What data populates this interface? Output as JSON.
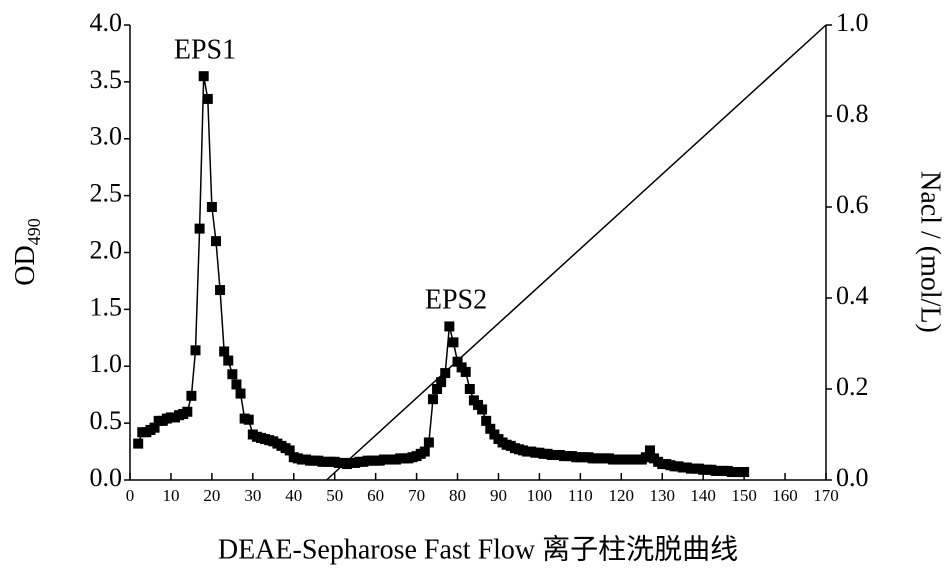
{
  "chart_data": {
    "type": "line",
    "xlabel": "DEAE-Sepharose Fast Flow 离子柱洗脱曲线",
    "ylabel": "OD",
    "ylabel_sub": "490",
    "y2label": "Nacl / (mol/L)",
    "annotations": [
      "EPS1",
      "EPS2"
    ],
    "xlim": [
      0,
      170
    ],
    "xticks": [
      0,
      10,
      20,
      30,
      40,
      50,
      60,
      70,
      80,
      90,
      100,
      110,
      120,
      130,
      140,
      150,
      160,
      170
    ],
    "ylim": [
      0,
      4
    ],
    "yticks": [
      {
        "value": 0,
        "label": "0.0"
      },
      {
        "value": 0.5,
        "label": "0.5"
      },
      {
        "value": 1,
        "label": "1.0"
      },
      {
        "value": 1.5,
        "label": "1.5"
      },
      {
        "value": 2,
        "label": "2.0"
      },
      {
        "value": 2.5,
        "label": "2.5"
      },
      {
        "value": 3,
        "label": "3.0"
      },
      {
        "value": 3.5,
        "label": "3.5"
      },
      {
        "value": 4,
        "label": "4.0"
      }
    ],
    "y2lim": [
      0,
      1
    ],
    "y2ticks": [
      {
        "value": 0,
        "label": "0.0"
      },
      {
        "value": 0.2,
        "label": "0.2"
      },
      {
        "value": 0.4,
        "label": "0.4"
      },
      {
        "value": 0.6,
        "label": "0.6"
      },
      {
        "value": 0.8,
        "label": "0.8"
      },
      {
        "value": 1,
        "label": "1.0"
      }
    ],
    "series": [
      {
        "color": "#000000",
        "marker": "square",
        "x": [
          2,
          3,
          4,
          5,
          6,
          7,
          8,
          9,
          10,
          11,
          12,
          13,
          14,
          15,
          16,
          17,
          18,
          19,
          20,
          21,
          22,
          23,
          24,
          25,
          26,
          27,
          28,
          29,
          30,
          31,
          32,
          33,
          34,
          35,
          36,
          37,
          38,
          39,
          40,
          41,
          42,
          43,
          44,
          45,
          46,
          47,
          48,
          49,
          50,
          51,
          52,
          53,
          54,
          55,
          56,
          57,
          58,
          59,
          60,
          61,
          62,
          63,
          64,
          65,
          66,
          67,
          68,
          69,
          70,
          71,
          72,
          73,
          74,
          75,
          76,
          77,
          78,
          79,
          80,
          81,
          82,
          83,
          84,
          85,
          86,
          87,
          88,
          89,
          90,
          91,
          92,
          93,
          94,
          95,
          96,
          97,
          98,
          99,
          100,
          101,
          102,
          103,
          104,
          105,
          106,
          107,
          108,
          109,
          110,
          111,
          112,
          113,
          114,
          115,
          116,
          117,
          118,
          119,
          120,
          121,
          122,
          123,
          124,
          125,
          126,
          127,
          128,
          129,
          130,
          131,
          132,
          133,
          134,
          135,
          136,
          137,
          138,
          139,
          140,
          141,
          142,
          143,
          144,
          145,
          146,
          147,
          148,
          149,
          150
        ],
        "values": [
          0.32,
          0.42,
          0.42,
          0.44,
          0.46,
          0.52,
          0.52,
          0.54,
          0.55,
          0.55,
          0.57,
          0.58,
          0.6,
          0.74,
          1.14,
          2.21,
          3.55,
          3.35,
          2.4,
          2.1,
          1.67,
          1.13,
          1.05,
          0.93,
          0.84,
          0.76,
          0.54,
          0.53,
          0.4,
          0.38,
          0.37,
          0.36,
          0.35,
          0.34,
          0.32,
          0.3,
          0.28,
          0.26,
          0.2,
          0.19,
          0.18,
          0.18,
          0.17,
          0.17,
          0.17,
          0.16,
          0.16,
          0.16,
          0.16,
          0.15,
          0.15,
          0.14,
          0.15,
          0.15,
          0.16,
          0.16,
          0.17,
          0.17,
          0.17,
          0.17,
          0.18,
          0.18,
          0.18,
          0.18,
          0.19,
          0.19,
          0.19,
          0.2,
          0.21,
          0.23,
          0.25,
          0.33,
          0.71,
          0.8,
          0.86,
          0.94,
          1.35,
          1.21,
          1.04,
          0.99,
          0.95,
          0.8,
          0.7,
          0.66,
          0.62,
          0.52,
          0.45,
          0.4,
          0.36,
          0.33,
          0.31,
          0.3,
          0.28,
          0.27,
          0.26,
          0.25,
          0.25,
          0.24,
          0.24,
          0.23,
          0.23,
          0.22,
          0.22,
          0.22,
          0.21,
          0.21,
          0.21,
          0.2,
          0.2,
          0.2,
          0.2,
          0.19,
          0.19,
          0.19,
          0.19,
          0.19,
          0.18,
          0.18,
          0.18,
          0.18,
          0.18,
          0.18,
          0.18,
          0.18,
          0.2,
          0.26,
          0.19,
          0.16,
          0.14,
          0.14,
          0.13,
          0.12,
          0.12,
          0.11,
          0.11,
          0.1,
          0.1,
          0.1,
          0.09,
          0.09,
          0.09,
          0.08,
          0.08,
          0.08,
          0.08,
          0.07,
          0.07,
          0.07,
          0.07
        ]
      },
      {
        "color": "#000000",
        "axis": "y2",
        "x": [
          48,
          170
        ],
        "values": [
          0,
          1
        ]
      }
    ]
  }
}
